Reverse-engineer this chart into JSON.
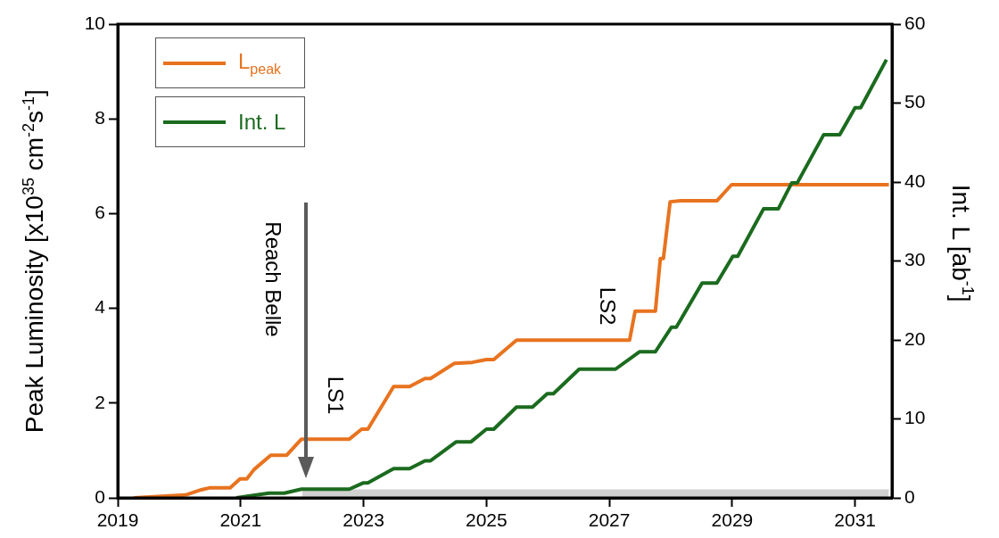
{
  "chart_data": {
    "type": "line",
    "xlim": [
      2019,
      2031.6
    ],
    "xticks": [
      2019,
      2021,
      2023,
      2025,
      2027,
      2029,
      2031
    ],
    "ylim": [
      0,
      10
    ],
    "yticks": [
      0,
      2,
      4,
      6,
      8,
      10
    ],
    "y2lim": [
      0,
      60
    ],
    "y2ticks": [
      0,
      10,
      20,
      30,
      40,
      50,
      60
    ],
    "ylabel": "Peak Luminosity [x10$^{35}$ cm$^{-2}$s$^{-1}$]",
    "y2label": "Int. L [ab$^{-1}$]",
    "legend": "top left",
    "grid": false,
    "marker": "none",
    "line_style": "solid",
    "annotations": [
      "Reach Belle",
      "LS1",
      "LS2"
    ],
    "series": [
      {
        "type": "area",
        "axis": "y2",
        "color": "#d0d0d0",
        "x": [
          2022,
          2031.55
        ],
        "values": [
          1,
          1
        ]
      },
      {
        "name": "L$_{peak}$",
        "color": "#e8731f",
        "x": [
          2019.26,
          2020.1,
          2020.36,
          2020.49,
          2020.83,
          2020.99,
          2021.1,
          2021.22,
          2021.49,
          2021.75,
          2021.99,
          2022.77,
          2022.97,
          2023.07,
          2023.49,
          2023.75,
          2024.0,
          2024.09,
          2024.48,
          2024.77,
          2025.0,
          2025.12,
          2025.49,
          2027.33,
          2027.42,
          2027.75,
          2027.83,
          2027.88,
          2027.99,
          2028.16,
          2028.75,
          2028.99,
          2031.55
        ],
        "values": [
          0,
          0.06,
          0.17,
          0.21,
          0.21,
          0.4,
          0.4,
          0.6,
          0.9,
          0.9,
          1.24,
          1.24,
          1.45,
          1.45,
          2.35,
          2.35,
          2.52,
          2.52,
          2.84,
          2.86,
          2.92,
          2.92,
          3.33,
          3.33,
          3.94,
          3.94,
          5.05,
          5.05,
          6.25,
          6.27,
          6.27,
          6.61,
          6.61
        ]
      },
      {
        "name": "Int. L",
        "axis": "y2",
        "color": "#1b6b1f",
        "x": [
          2020.93,
          2021.46,
          2021.71,
          2021.99,
          2022.77,
          2023.0,
          2023.07,
          2023.49,
          2023.75,
          2024.0,
          2024.09,
          2024.51,
          2024.75,
          2025.0,
          2025.12,
          2025.49,
          2025.75,
          2025.99,
          2026.09,
          2026.51,
          2027.1,
          2027.49,
          2027.75,
          2028.01,
          2028.09,
          2028.51,
          2028.75,
          2029.01,
          2029.09,
          2029.51,
          2029.75,
          2029.97,
          2030.06,
          2030.49,
          2030.75,
          2031.0,
          2031.09,
          2031.51
        ],
        "values": [
          0,
          0.6,
          0.6,
          1.1,
          1.1,
          1.9,
          1.9,
          3.7,
          3.7,
          4.7,
          4.7,
          7.1,
          7.1,
          8.7,
          8.7,
          11.5,
          11.5,
          13.2,
          13.2,
          16.3,
          16.3,
          18.5,
          18.5,
          21.6,
          21.6,
          27.2,
          27.2,
          30.6,
          30.6,
          36.6,
          36.6,
          39.9,
          39.9,
          46.0,
          46.0,
          49.4,
          49.4,
          55.5
        ]
      }
    ]
  }
}
